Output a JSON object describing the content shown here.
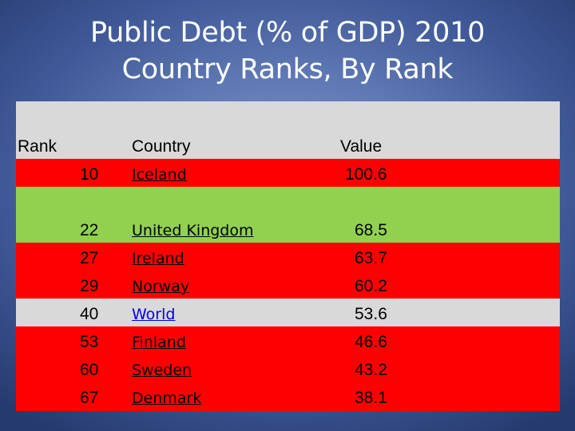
{
  "title": {
    "line1": "Public Debt (% of GDP) 2010",
    "line2": "Country Ranks, By Rank"
  },
  "colors": {
    "header_bg": "#d9d9d9",
    "red": "#ff0000",
    "green": "#92d050",
    "grey": "#d9d9d9"
  },
  "table": {
    "headers": {
      "rank": "Rank",
      "country": "Country",
      "value": "Value"
    },
    "rows": [
      {
        "rank": "10",
        "country": "Iceland",
        "value": "100.6",
        "color": "red"
      },
      {
        "rank": "22",
        "country": "United Kingdom",
        "value": "68.5",
        "color": "green"
      },
      {
        "rank": "27",
        "country": "Ireland",
        "value": "63.7",
        "color": "red"
      },
      {
        "rank": "29",
        "country": "Norway",
        "value": "60.2",
        "color": "red"
      },
      {
        "rank": "40",
        "country": "World",
        "value": "53.6",
        "color": "grey"
      },
      {
        "rank": "53",
        "country": "Finland",
        "value": "46.6",
        "color": "red"
      },
      {
        "rank": "60",
        "country": "Sweden",
        "value": "43.2",
        "color": "red"
      },
      {
        "rank": "67",
        "country": "Denmark",
        "value": "38.1",
        "color": "red"
      }
    ]
  }
}
